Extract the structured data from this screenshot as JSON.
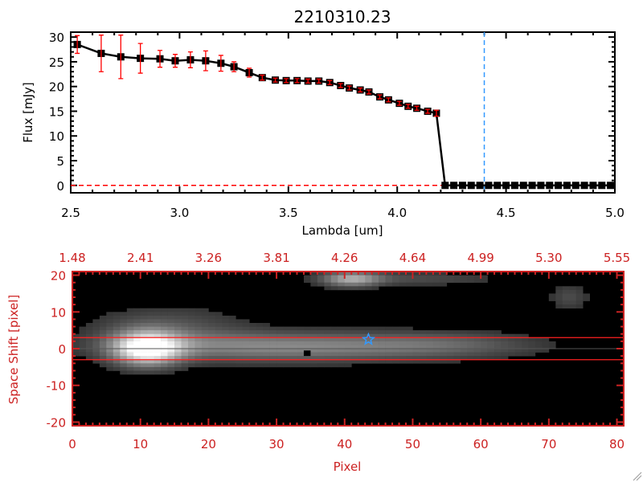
{
  "chart_data": [
    {
      "type": "line",
      "title": "2210310.23",
      "xlabel": "Lambda [um]",
      "ylabel": "Flux [mJy]",
      "xlim": [
        2.5,
        5.0
      ],
      "ylim": [
        -1.5,
        31
      ],
      "xticks": [
        "2.5",
        "3.0",
        "3.5",
        "4.0",
        "4.5",
        "5.0"
      ],
      "xtick_values": [
        2.5,
        3.0,
        3.5,
        4.0,
        4.5,
        5.0
      ],
      "yticks": [
        "0",
        "5",
        "10",
        "15",
        "20",
        "25",
        "30"
      ],
      "ytick_values": [
        0,
        5,
        10,
        15,
        20,
        25,
        30
      ],
      "series": [
        {
          "name": "flux",
          "x": [
            2.53,
            2.64,
            2.73,
            2.82,
            2.91,
            2.98,
            3.05,
            3.12,
            3.19,
            3.25,
            3.32,
            3.38,
            3.44,
            3.49,
            3.54,
            3.59,
            3.64,
            3.69,
            3.74,
            3.78,
            3.83,
            3.87,
            3.92,
            3.96,
            4.01,
            4.05,
            4.09,
            4.14,
            4.18,
            4.22,
            4.26,
            4.3,
            4.34,
            4.38,
            4.42,
            4.46,
            4.5,
            4.54,
            4.58,
            4.62,
            4.66,
            4.7,
            4.74,
            4.78,
            4.82,
            4.86,
            4.9,
            4.94,
            4.98
          ],
          "y": [
            28.5,
            26.7,
            26.0,
            25.7,
            25.6,
            25.2,
            25.4,
            25.2,
            24.7,
            24.0,
            22.8,
            21.8,
            21.3,
            21.2,
            21.2,
            21.1,
            21.1,
            20.8,
            20.2,
            19.7,
            19.3,
            18.9,
            17.9,
            17.3,
            16.6,
            16.0,
            15.6,
            15.0,
            14.6,
            0,
            0,
            0,
            0,
            0,
            0,
            0,
            0,
            0,
            0,
            0,
            0,
            0,
            0,
            0,
            0,
            0,
            0,
            0,
            0
          ],
          "yerr": [
            1.8,
            3.7,
            4.4,
            3.0,
            1.7,
            1.3,
            1.6,
            2.0,
            1.6,
            1.0,
            0.9,
            0.5,
            0.4,
            0.4,
            0.4,
            0.4,
            0.4,
            0.4,
            0.4,
            0.4,
            0.4,
            0.4,
            0.4,
            0.4,
            0.4,
            0.4,
            0.4,
            0.4,
            0.6,
            0,
            0,
            0,
            0,
            0,
            0,
            0,
            0,
            0,
            0,
            0,
            0,
            0,
            0,
            0,
            0,
            0,
            0,
            0,
            0
          ]
        }
      ],
      "vline_x": 4.4,
      "hline_y": 0,
      "colors": {
        "line": "#000000",
        "errorbar": "#ff0000",
        "vline": "#3399ff",
        "hline": "#ff0000"
      }
    },
    {
      "type": "heatmap",
      "xlabel": "Pixel",
      "ylabel": "Space Shift [pixel]",
      "xlim": [
        0,
        81
      ],
      "ylim": [
        -21,
        21
      ],
      "xticks": [
        "0",
        "10",
        "20",
        "30",
        "40",
        "50",
        "60",
        "70",
        "80"
      ],
      "xtick_values": [
        0,
        10,
        20,
        30,
        40,
        50,
        60,
        70,
        80
      ],
      "yticks": [
        "-20",
        "-10",
        "0",
        "10",
        "20"
      ],
      "ytick_values": [
        -20,
        -10,
        0,
        10,
        20
      ],
      "top_xticks": [
        "1.48",
        "2.41",
        "3.26",
        "3.81",
        "4.26",
        "4.64",
        "4.99",
        "5.30",
        "5.55"
      ],
      "sources": [
        {
          "x": 11,
          "y": 0,
          "sx": 3.5,
          "sy": 3.2,
          "amp": 1.0
        },
        {
          "x": 30,
          "y": 0.5,
          "sx": 16,
          "sy": 2.8,
          "amp": 0.45
        },
        {
          "x": 55,
          "y": 1,
          "sx": 10,
          "sy": 2.5,
          "amp": 0.22
        },
        {
          "x": 14,
          "y": 6,
          "sx": 8,
          "sy": 4,
          "amp": 0.2
        },
        {
          "x": 41,
          "y": 19,
          "sx": 3,
          "sy": 1.5,
          "amp": 0.55
        },
        {
          "x": 50,
          "y": 19,
          "sx": 9,
          "sy": 1.3,
          "amp": 0.18
        },
        {
          "x": 73,
          "y": 14,
          "sx": 2,
          "sy": 2.5,
          "amp": 0.18
        }
      ],
      "red_lines_y": [
        3,
        -3
      ],
      "center_line_y": 0,
      "marker": {
        "x": 43.5,
        "y": 2.5,
        "symbol": "star"
      },
      "colors": {
        "axis": "#cc2222",
        "marker": "#3399ff"
      }
    }
  ]
}
